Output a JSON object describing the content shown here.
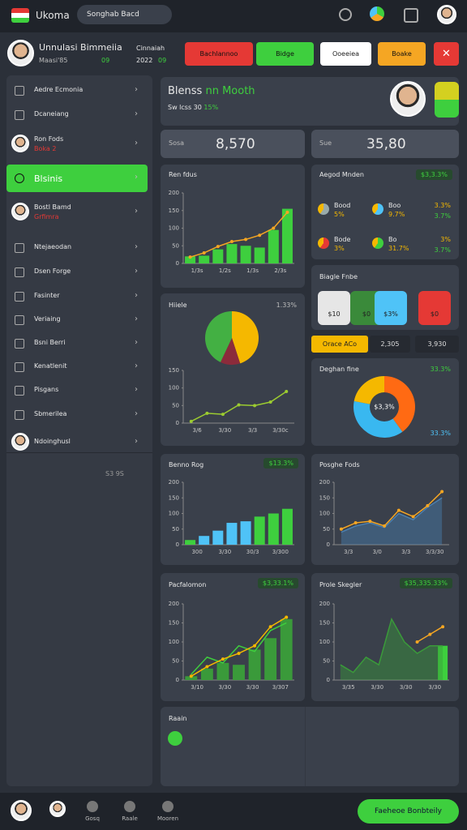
{
  "topbar": {
    "app_name": "Ukoma",
    "search": "Songhab Bacd"
  },
  "profile": {
    "name": "Unnulasi Bimmeiia",
    "handle": "Maasi'85",
    "badge": "09",
    "label": "Cinnaiah",
    "date": "2022",
    "date_badge": "09"
  },
  "actions": [
    {
      "label": "Bachlannoo",
      "color": "#e53935"
    },
    {
      "label": "Bidge",
      "color": "#3ecf3e"
    },
    {
      "label": "Ooeeiea",
      "color": "#ffffff"
    },
    {
      "label": "Boake",
      "color": "#f5a623"
    }
  ],
  "sidebar": {
    "items": [
      {
        "label": "Aedre Ecmonia"
      },
      {
        "label": "Dcaneiang"
      },
      {
        "label": "Ron Fods",
        "sub": "Boka 2",
        "avatar": true
      },
      {
        "label": "Blsinis",
        "active": true
      },
      {
        "label": "Bostl Bamd",
        "sub": "Grfimra",
        "avatar": true
      },
      {
        "label": "Ntejaeodan"
      },
      {
        "label": "Dsen Forge"
      },
      {
        "label": "Fasinter"
      },
      {
        "label": "Veriaing"
      },
      {
        "label": "Bsni Berri"
      },
      {
        "label": "Kenatlenit"
      },
      {
        "label": "Pisgans"
      },
      {
        "label": "Sbmerilea"
      },
      {
        "label": "Ndoinghusl",
        "avatar": true
      }
    ],
    "footer": "S3 9S"
  },
  "overview": {
    "title": "Blenss",
    "highlight": "nn Mooth",
    "subtitle": "Sw lcss 30",
    "subtitle_pct": "15%"
  },
  "stats": [
    {
      "label": "Sosa",
      "value": "8,570"
    },
    {
      "label": "Sue",
      "value": "35,80"
    }
  ],
  "revenue": {
    "title": "Ren fdus",
    "ylim": [
      0,
      200
    ],
    "yticks": [
      0,
      50,
      100,
      150,
      200
    ],
    "bars": [
      20,
      22,
      40,
      55,
      50,
      45,
      95,
      155
    ],
    "bar_color": "#3ecf3e",
    "lines": [
      {
        "values": [
          18,
          30,
          48,
          62,
          68,
          80,
          100,
          145
        ],
        "color": "#f5a623",
        "dots": true
      }
    ],
    "xlabels": [
      "1/3s",
      "1/2s",
      "1/3s",
      "2/3s"
    ]
  },
  "goals": {
    "title": "Aegod Mnden",
    "badge": "$3,3.3%",
    "items": [
      {
        "label": "Bood",
        "sub": "5%"
      },
      {
        "label": "Boo",
        "sub": "9.7%"
      },
      {
        "label": "Bode",
        "sub": "3%"
      },
      {
        "label": "Bo",
        "sub": "31.7%"
      }
    ],
    "values": [
      "3.3%",
      "3.7%",
      "3%",
      "3.7%"
    ]
  },
  "tiles": {
    "title": "Biagle Fnbe",
    "tiles": [
      {
        "label": "$10",
        "color": "#e6e6e6"
      },
      {
        "label": "$0",
        "color": "#3a8a3a"
      },
      {
        "label": "$3%",
        "color": "#4fc3f7"
      },
      {
        "label": "$0",
        "color": "#e53935"
      }
    ],
    "tabs": [
      "Orace ACo",
      "2,305",
      "3,930"
    ]
  },
  "split": {
    "title": "Hiiele",
    "badge": "1.33%",
    "pie": {
      "values": [
        45,
        12,
        43
      ],
      "colors": [
        "#f5b800",
        "#8b2b3b",
        "#43b043"
      ]
    },
    "trend": {
      "ylim": [
        0,
        150
      ],
      "yticks": [
        0,
        50,
        100,
        150
      ],
      "lines": [
        {
          "values": [
            5,
            28,
            25,
            52,
            50,
            60,
            90
          ],
          "color": "#9ccc30",
          "dots": true
        }
      ],
      "xlabels": [
        "3/6",
        "3/30",
        "3/3",
        "3/30c"
      ]
    }
  },
  "share": {
    "title": "Deghan fine",
    "badge": "33.3%",
    "center": "$3,3%",
    "footer": "33.3%",
    "values": [
      40,
      38,
      22
    ],
    "colors": [
      "#ff6a13",
      "#39b8f0",
      "#f5b800"
    ]
  },
  "benno": {
    "title": "Benno Rog",
    "badge": "$13.3%",
    "ylim": [
      0,
      200
    ],
    "yticks": [
      0,
      50,
      100,
      150,
      200
    ],
    "bars": [
      15,
      28,
      45,
      70,
      75,
      90,
      100,
      115
    ],
    "bar_colors": [
      "#3ecf3e",
      "#4fc3f7",
      "#4fc3f7",
      "#4fc3f7",
      "#4fc3f7",
      "#3ecf3e",
      "#3ecf3e",
      "#3ecf3e"
    ],
    "xlabels": [
      "300",
      "3/30",
      "30/3",
      "3/300"
    ]
  },
  "posghe": {
    "title": "Posghe Fods",
    "ylim": [
      0,
      200
    ],
    "yticks": [
      0,
      50,
      100,
      150,
      200
    ],
    "lines": [
      {
        "values": [
          40,
          60,
          70,
          55,
          100,
          80,
          120,
          150
        ],
        "color": "#4a7fb0",
        "area": true
      },
      {
        "values": [
          50,
          70,
          75,
          60,
          110,
          90,
          125,
          170
        ],
        "color": "#f5a623",
        "dots": true
      }
    ],
    "xlabels": [
      "3/3",
      "3/0",
      "3/3",
      "3/3/30"
    ]
  },
  "pacf": {
    "title": "Pacfalomon",
    "badge": "$3,33.1%",
    "ylim": [
      0,
      200
    ],
    "yticks": [
      0,
      50,
      100,
      150,
      200
    ],
    "bars": [
      10,
      30,
      45,
      40,
      80,
      110,
      160
    ],
    "bar_color": "#3a9a3a",
    "lines": [
      {
        "values": [
          15,
          60,
          45,
          90,
          75,
          130,
          150
        ],
        "color": "#3ecf3e"
      },
      {
        "values": [
          10,
          35,
          55,
          70,
          90,
          140,
          165
        ],
        "color": "#f5b800",
        "dots": true
      }
    ],
    "xlabels": [
      "3/10",
      "3/30",
      "3/30",
      "3/307"
    ]
  },
  "prole": {
    "title": "Prole Skegler",
    "badge": "$35,335.33%",
    "ylim": [
      0,
      200
    ],
    "yticks": [
      0,
      50,
      100,
      150,
      200
    ],
    "bars": [
      0,
      0,
      0,
      0,
      0,
      0,
      0,
      0,
      90
    ],
    "bar_color": "#3ecf3e",
    "lines": [
      {
        "values": [
          40,
          20,
          60,
          40,
          160,
          100,
          70,
          90,
          90
        ],
        "color": "#3a9a3a",
        "area": true
      },
      {
        "values": [
          null,
          null,
          null,
          null,
          null,
          null,
          100,
          120,
          140
        ],
        "color": "#f5a623",
        "dots": true
      }
    ],
    "xlabels": [
      "3/35",
      "3/30",
      "3/30",
      "3/30"
    ]
  },
  "raain": {
    "title": "Raain"
  },
  "bottom": {
    "nav": [
      "Gosq",
      "Raale",
      "Mooren"
    ],
    "button": "Faeheoe Bonbteily"
  }
}
